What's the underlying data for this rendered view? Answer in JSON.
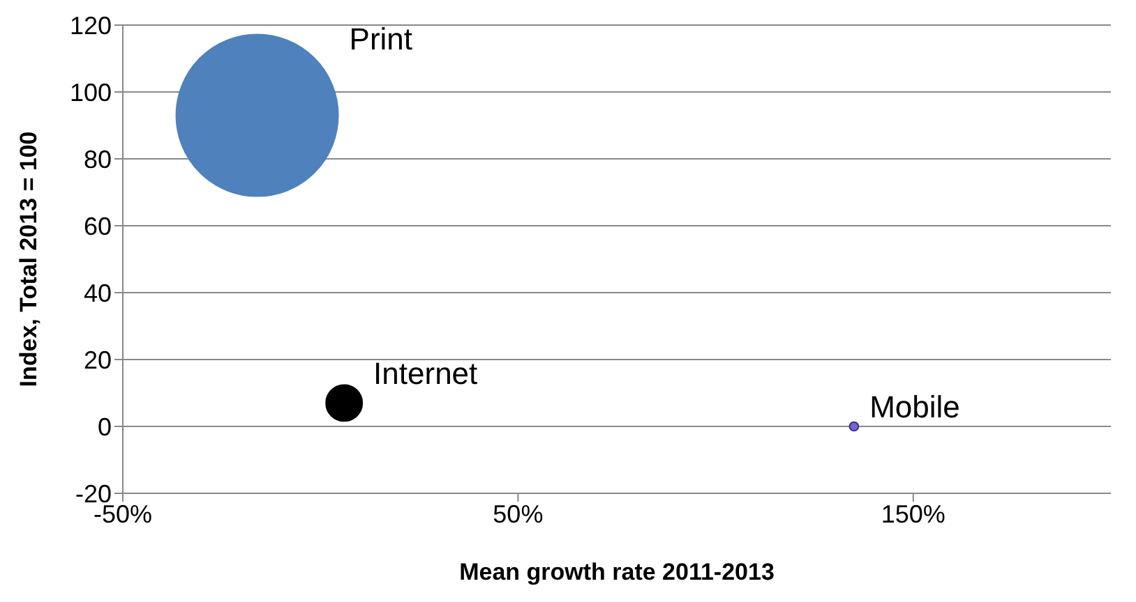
{
  "chart_data": {
    "type": "bubble",
    "xlabel": "Mean growth rate 2011-2013",
    "ylabel": "Index, Total 2013 = 100",
    "series": [
      {
        "name": "Print",
        "color": "#4f81bd",
        "x": [
          -16
        ],
        "values": [
          93
        ],
        "sizes": [
          1
        ]
      },
      {
        "name": "Internet",
        "color": "#000000",
        "x": [
          6
        ],
        "values": [
          7
        ],
        "sizes": [
          0.05
        ]
      },
      {
        "name": "Mobile",
        "color": "#7f5fc8",
        "x": [
          135
        ],
        "values": [
          0
        ],
        "sizes": [
          0.003
        ]
      }
    ],
    "xlim": [
      -50,
      200
    ],
    "xticks": [
      {
        "value": -50,
        "label": "-50%"
      },
      {
        "value": 50,
        "label": "50%"
      },
      {
        "value": 150,
        "label": "150%"
      }
    ],
    "ylim": [
      -20,
      120
    ],
    "yticks": [
      -20,
      0,
      20,
      40,
      60,
      80,
      100,
      120
    ],
    "grid": "y",
    "legend": false
  }
}
